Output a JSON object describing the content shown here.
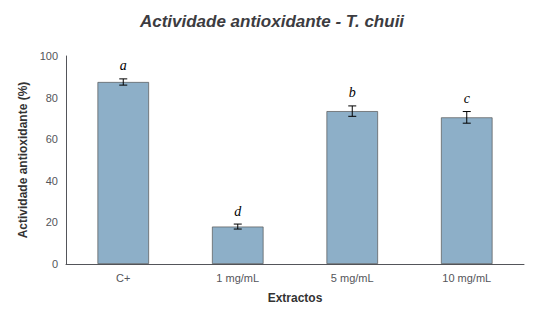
{
  "chart_data": {
    "type": "bar",
    "title": "Actividade antioxidante - T. chuii",
    "xlabel": "Extractos",
    "ylabel": "Actividade antioxidante (%)",
    "categories": [
      "C+",
      "1 mg/mL",
      "5 mg/mL",
      "10 mg/mL"
    ],
    "values": [
      87.5,
      18.0,
      73.5,
      70.5
    ],
    "errors": [
      1.5,
      1.2,
      2.5,
      2.8
    ],
    "annotations": [
      "a",
      "d",
      "b",
      "c"
    ],
    "color": "#8dafc8",
    "ylim": [
      0,
      100
    ],
    "yticks": [
      0,
      20,
      40,
      60,
      80,
      100
    ],
    "grid": false
  }
}
